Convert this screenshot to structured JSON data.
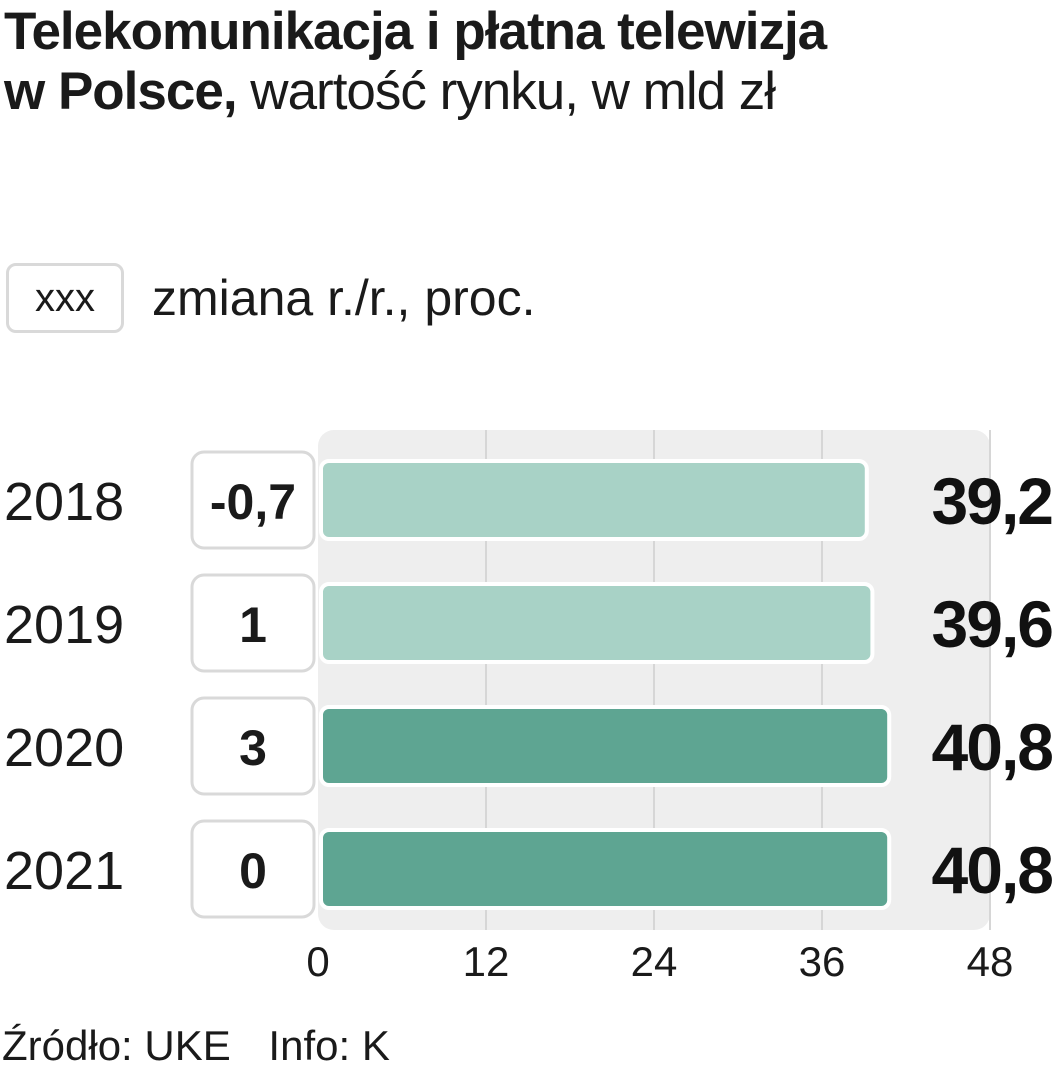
{
  "title": {
    "line1": "Telekomunikacja i płatna telewizja",
    "line2_bold": "w Polsce,",
    "line2_light": "wartość rynku, w mld zł"
  },
  "legend": {
    "box_text": "xxx",
    "label": "zmiana r./r., proc."
  },
  "colors": {
    "bar_light": "#a8d2c6",
    "bar_dark": "#5ea592",
    "plot_bg": "#eeeeee",
    "grid": "#d6d6d6"
  },
  "chart_data": {
    "type": "bar",
    "orientation": "horizontal",
    "categories": [
      "2018",
      "2019",
      "2020",
      "2021"
    ],
    "values": [
      39.2,
      39.6,
      40.8,
      40.8
    ],
    "value_labels": [
      "39,2",
      "39,6",
      "40,8",
      "40,8"
    ],
    "yoy_change": [
      "-0,7",
      "1",
      "3",
      "0"
    ],
    "bar_shade": [
      "light",
      "light",
      "dark",
      "dark"
    ],
    "xlim": [
      0,
      48
    ],
    "xticks": [
      "0",
      "12",
      "24",
      "36",
      "48"
    ],
    "grid": true
  },
  "footer": {
    "source": "Źródło: UKE",
    "info": "Info: K"
  }
}
